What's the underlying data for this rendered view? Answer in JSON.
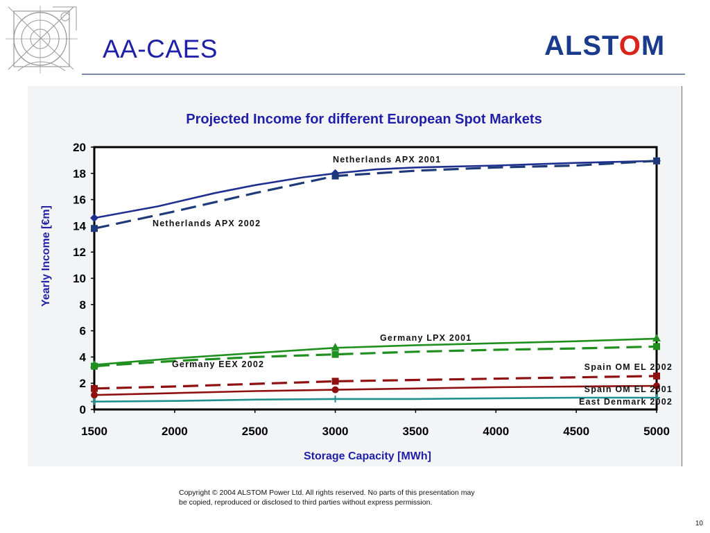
{
  "slide": {
    "title": "AA-CAES",
    "brand": {
      "prefix": "ALST",
      "accent": "O",
      "suffix": "M"
    },
    "copyright_line1": "Copyright © 2004 ALSTOM Power Ltd.  All rights reserved. No parts of this presentation may",
    "copyright_line2": "be copied, reproduced or disclosed to third parties without express permission.",
    "page_number": "10"
  },
  "colors": {
    "title": "#1f1fa8",
    "netherlands": "#1f2f8f",
    "germany": "#1f8f1f",
    "spain": "#8f1010",
    "denmark": "#1f8f8f"
  },
  "chart_data": {
    "type": "line",
    "title": "Projected Income for different European Spot Markets",
    "xlabel": "Storage Capacity [MWh]",
    "ylabel": "Yearly Income [€m]",
    "xlim": [
      1500,
      5000
    ],
    "ylim": [
      0,
      20
    ],
    "xticks": [
      1500,
      2000,
      2500,
      3000,
      3500,
      4000,
      4500,
      5000
    ],
    "yticks": [
      0,
      2,
      4,
      6,
      8,
      10,
      12,
      14,
      16,
      18,
      20
    ],
    "grid": false,
    "series": [
      {
        "name": "Netherlands  APX 2001",
        "color": "#1f2f8f",
        "dash": false,
        "marker": "diamond",
        "x": [
          1500,
          1900,
          2250,
          2500,
          2800,
          3000,
          3250,
          3500,
          4000,
          4500,
          5000
        ],
        "y": [
          14.6,
          15.5,
          16.5,
          17.1,
          17.7,
          18.0,
          18.3,
          18.45,
          18.6,
          18.8,
          18.95
        ]
      },
      {
        "name": "Netherlands APX 2002",
        "color": "#1f3a78",
        "dash": true,
        "marker": "square",
        "x": [
          1500,
          2000,
          2500,
          3000,
          3500,
          4000,
          4500,
          5000
        ],
        "y": [
          13.8,
          15.1,
          16.5,
          17.8,
          18.2,
          18.45,
          18.6,
          18.95
        ]
      },
      {
        "name": "Germany LPX 2001",
        "color": "#1f8f1f",
        "dash": false,
        "marker": "triangle",
        "x": [
          1500,
          2000,
          2500,
          3000,
          3500,
          4000,
          4500,
          5000
        ],
        "y": [
          3.4,
          3.9,
          4.3,
          4.7,
          4.9,
          5.05,
          5.2,
          5.4
        ]
      },
      {
        "name": "Germany EEX 2002",
        "color": "#1f8f1f",
        "dash": true,
        "marker": "square",
        "x": [
          1500,
          2000,
          2500,
          3000,
          3500,
          4000,
          4500,
          5000
        ],
        "y": [
          3.3,
          3.7,
          4.0,
          4.2,
          4.4,
          4.55,
          4.65,
          4.8
        ]
      },
      {
        "name": "Spain OM EL 2002",
        "color": "#8f1010",
        "dash": true,
        "marker": "square",
        "x": [
          1500,
          2000,
          2500,
          3000,
          3500,
          4000,
          4500,
          5000
        ],
        "y": [
          1.6,
          1.75,
          1.95,
          2.15,
          2.25,
          2.35,
          2.45,
          2.55
        ]
      },
      {
        "name": "Spain OM EL 2001",
        "color": "#8f1010",
        "dash": false,
        "marker": "circle",
        "x": [
          1500,
          2000,
          2500,
          3000,
          3500,
          4000,
          4500,
          5000
        ],
        "y": [
          1.1,
          1.25,
          1.4,
          1.5,
          1.6,
          1.7,
          1.75,
          1.8
        ]
      },
      {
        "name": "East Denmark 2002",
        "color": "#1f8f8f",
        "dash": false,
        "marker": "plus",
        "x": [
          1500,
          2000,
          2500,
          3000,
          3500,
          4000,
          4500,
          5000
        ],
        "y": [
          0.6,
          0.65,
          0.75,
          0.8,
          0.8,
          0.85,
          0.9,
          0.9
        ]
      }
    ]
  }
}
